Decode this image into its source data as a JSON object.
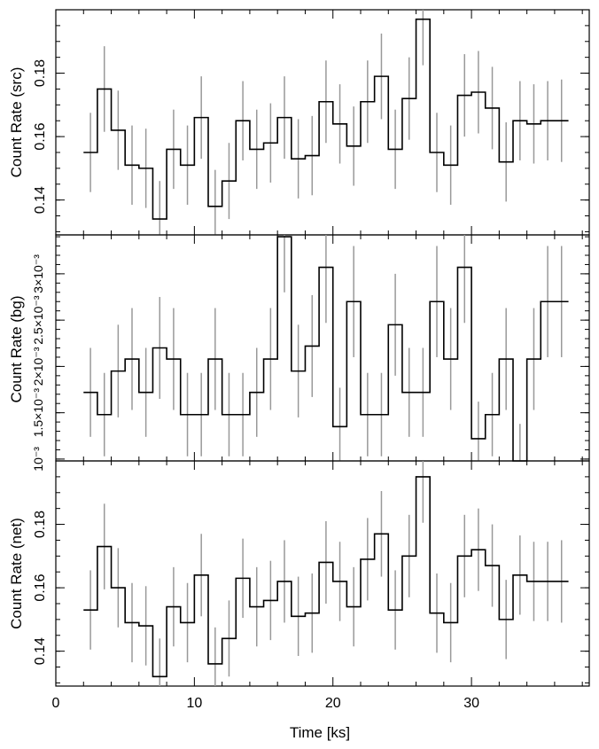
{
  "chart_data": [
    {
      "type": "line",
      "ylabel": "Count Rate (src)",
      "ylim": [
        0.129,
        0.2
      ],
      "yticks": [
        0.14,
        0.16,
        0.18
      ],
      "ytick_labels": [
        "0.14",
        "0.16",
        "0.18"
      ],
      "x": [
        2.5,
        3.5,
        4.5,
        5.5,
        6.5,
        7.5,
        8.5,
        9.5,
        10.5,
        11.5,
        12.5,
        13.5,
        14.5,
        15.5,
        16.5,
        17.5,
        18.5,
        19.5,
        20.5,
        21.5,
        22.5,
        23.5,
        24.5,
        25.5,
        26.5,
        27.5,
        28.5,
        29.5,
        30.5,
        31.5,
        32.5,
        33.5,
        34.5,
        35.5,
        36.5
      ],
      "values": [
        0.155,
        0.175,
        0.162,
        0.151,
        0.15,
        0.134,
        0.156,
        0.151,
        0.166,
        0.138,
        0.146,
        0.165,
        0.156,
        0.158,
        0.166,
        0.153,
        0.154,
        0.171,
        0.164,
        0.157,
        0.171,
        0.179,
        0.156,
        0.172,
        0.197,
        0.155,
        0.151,
        0.173,
        0.174,
        0.169,
        0.152,
        0.165,
        0.164,
        0.165,
        0.165
      ],
      "errors": [
        0.0125,
        0.0135,
        0.0125,
        0.0125,
        0.0125,
        0.012,
        0.0125,
        0.0125,
        0.013,
        0.0115,
        0.012,
        0.0125,
        0.0125,
        0.0125,
        0.013,
        0.0125,
        0.0125,
        0.013,
        0.0125,
        0.0125,
        0.013,
        0.0135,
        0.0125,
        0.013,
        0.0145,
        0.0125,
        0.0125,
        0.013,
        0.013,
        0.013,
        0.0125,
        0.0125,
        0.0125,
        0.0125,
        0.013
      ]
    },
    {
      "type": "line",
      "ylabel": "Count Rate (bg)",
      "ylim": [
        0.00098,
        0.00342
      ],
      "yticks": [
        0.001,
        0.0015,
        0.002,
        0.0025,
        0.003
      ],
      "ytick_labels": [
        "10⁻³",
        "1.5×10⁻³",
        "2×10⁻³",
        "2.5×10⁻³",
        "3×10⁻³"
      ],
      "x": [
        2.5,
        3.5,
        4.5,
        5.5,
        6.5,
        7.5,
        8.5,
        9.5,
        10.5,
        11.5,
        12.5,
        13.5,
        14.5,
        15.5,
        16.5,
        17.5,
        18.5,
        19.5,
        20.5,
        21.5,
        22.5,
        23.5,
        24.5,
        25.5,
        26.5,
        27.5,
        28.5,
        29.5,
        30.5,
        31.5,
        32.5,
        33.5,
        34.5,
        35.5,
        36.5
      ],
      "values": [
        0.00172,
        0.00148,
        0.00195,
        0.00208,
        0.00172,
        0.0022,
        0.00208,
        0.00148,
        0.00148,
        0.00208,
        0.00148,
        0.00148,
        0.00172,
        0.00208,
        0.0034,
        0.00195,
        0.00222,
        0.00307,
        0.00135,
        0.0027,
        0.00148,
        0.00148,
        0.00245,
        0.00172,
        0.00172,
        0.0027,
        0.00208,
        0.00307,
        0.00122,
        0.00148,
        0.00208,
        0.00098,
        0.00208,
        0.0027,
        0.0027
      ],
      "errors": [
        0.00048,
        0.00045,
        0.0005,
        0.00055,
        0.00048,
        0.00055,
        0.00055,
        0.00045,
        0.00045,
        0.00055,
        0.00045,
        0.00045,
        0.00048,
        0.00055,
        0.0006,
        0.0005,
        0.00055,
        0.0006,
        0.00042,
        0.0006,
        0.00045,
        0.00045,
        0.00055,
        0.00048,
        0.00048,
        0.0006,
        0.00055,
        0.0006,
        0.0004,
        0.00045,
        0.00055,
        0.0004,
        0.00055,
        0.0006,
        0.0006
      ]
    },
    {
      "type": "line",
      "xlabel": "Time [ks]",
      "ylabel": "Count Rate (net)",
      "xlim": [
        0,
        38.5
      ],
      "xticks": [
        0,
        10,
        20,
        30
      ],
      "xtick_labels": [
        "0",
        "10",
        "20",
        "30"
      ],
      "ylim": [
        0.129,
        0.2
      ],
      "yticks": [
        0.14,
        0.16,
        0.18
      ],
      "ytick_labels": [
        "0.14",
        "0.16",
        "0.18"
      ],
      "x": [
        2.5,
        3.5,
        4.5,
        5.5,
        6.5,
        7.5,
        8.5,
        9.5,
        10.5,
        11.5,
        12.5,
        13.5,
        14.5,
        15.5,
        16.5,
        17.5,
        18.5,
        19.5,
        20.5,
        21.5,
        22.5,
        23.5,
        24.5,
        25.5,
        26.5,
        27.5,
        28.5,
        29.5,
        30.5,
        31.5,
        32.5,
        33.5,
        34.5,
        35.5,
        36.5
      ],
      "values": [
        0.153,
        0.173,
        0.16,
        0.149,
        0.148,
        0.132,
        0.154,
        0.149,
        0.164,
        0.136,
        0.144,
        0.163,
        0.154,
        0.156,
        0.162,
        0.151,
        0.152,
        0.168,
        0.162,
        0.154,
        0.169,
        0.177,
        0.153,
        0.17,
        0.195,
        0.152,
        0.149,
        0.17,
        0.172,
        0.167,
        0.15,
        0.164,
        0.162,
        0.162,
        0.162
      ],
      "errors": [
        0.0125,
        0.0135,
        0.0125,
        0.0125,
        0.0125,
        0.012,
        0.0125,
        0.0125,
        0.013,
        0.0115,
        0.012,
        0.0125,
        0.0125,
        0.0125,
        0.013,
        0.0125,
        0.0125,
        0.013,
        0.0125,
        0.0125,
        0.013,
        0.0135,
        0.0125,
        0.013,
        0.0145,
        0.0125,
        0.0125,
        0.013,
        0.013,
        0.013,
        0.0125,
        0.0125,
        0.0125,
        0.0125,
        0.013
      ]
    }
  ],
  "colors": {
    "step": "#000000",
    "errorbar": "#999999",
    "axes": "#000000"
  }
}
